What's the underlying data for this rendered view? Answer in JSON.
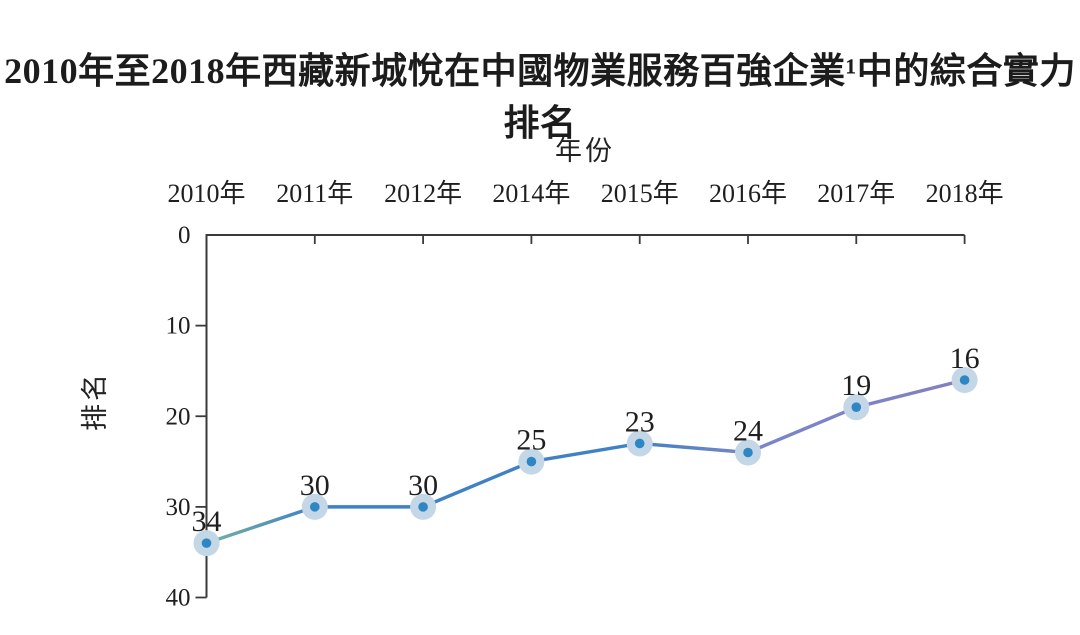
{
  "title": "2010年至2018年西藏新城悅在中國物業服務百強企業¹中的綜合實力排名",
  "chart_data": {
    "type": "line",
    "title": "2010年至2018年西藏新城悅在中國物業服務百強企業¹中的綜合實力排名",
    "xlabel": "年份",
    "ylabel": "排名",
    "categories": [
      "2010年",
      "2011年",
      "2012年",
      "2014年",
      "2015年",
      "2016年",
      "2017年",
      "2018年"
    ],
    "values": [
      34,
      30,
      30,
      25,
      23,
      24,
      19,
      16
    ],
    "y_ticks": [
      0,
      10,
      20,
      30,
      40
    ],
    "ylim": [
      0,
      40
    ],
    "y_axis_inverted": true,
    "grid": false,
    "legend_position": "none",
    "data_labels_shown": true,
    "line_gradient": [
      {
        "offset": 0,
        "color": "#77b1a1"
      },
      {
        "offset": 0.143,
        "color": "#3f81c4"
      },
      {
        "offset": 0.571,
        "color": "#3f81c4"
      },
      {
        "offset": 0.714,
        "color": "#7a85c9"
      },
      {
        "offset": 1,
        "color": "#8280c2"
      }
    ],
    "marker": {
      "outer_color": "#c4d7e7",
      "inner_color": "#2f86c4"
    },
    "axis_color": "#3a3a3a",
    "text_color": "#1f1f1f"
  }
}
